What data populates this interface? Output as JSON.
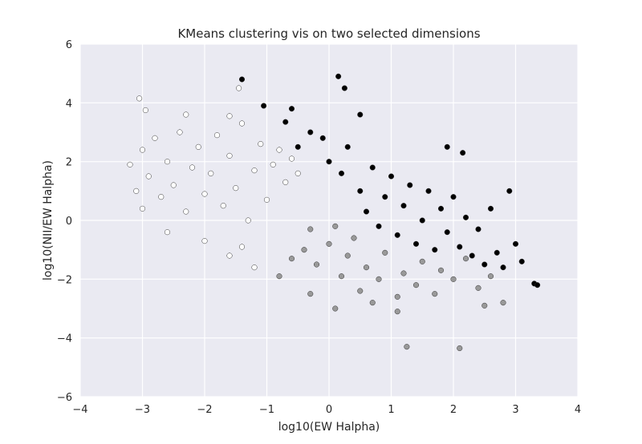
{
  "chart_data": {
    "type": "scatter",
    "title": "KMeans clustering vis on two selected dimensions",
    "xlabel": "log10(EW Halpha)",
    "ylabel": "log10(NII/EW Halpha)",
    "xlim": [
      -4,
      4
    ],
    "ylim": [
      -6,
      6
    ],
    "xticks": [
      -4,
      -3,
      -2,
      -1,
      0,
      1,
      2,
      3,
      4
    ],
    "xtick_labels": [
      "−4",
      "−3",
      "−2",
      "−1",
      "0",
      "1",
      "2",
      "3",
      "4"
    ],
    "yticks": [
      -6,
      -4,
      -2,
      0,
      2,
      4,
      6
    ],
    "ytick_labels": [
      "−6",
      "−4",
      "−2",
      "0",
      "2",
      "4",
      "6"
    ],
    "grid": true,
    "background": "#EAEAF2",
    "grid_color": "#FFFFFF",
    "series": [
      {
        "color": "#FFFFFF",
        "points": [
          [
            -3.2,
            1.9
          ],
          [
            -3.1,
            1.0
          ],
          [
            -3.0,
            2.4
          ],
          [
            -3.0,
            0.4
          ],
          [
            -2.9,
            1.5
          ],
          [
            -2.8,
            2.8
          ],
          [
            -2.7,
            0.8
          ],
          [
            -2.6,
            2.0
          ],
          [
            -2.5,
            1.2
          ],
          [
            -2.4,
            3.0
          ],
          [
            -2.3,
            0.3
          ],
          [
            -2.2,
            1.8
          ],
          [
            -2.1,
            2.5
          ],
          [
            -2.0,
            0.9
          ],
          [
            -1.9,
            1.6
          ],
          [
            -1.8,
            2.9
          ],
          [
            -1.7,
            0.5
          ],
          [
            -1.6,
            2.2
          ],
          [
            -1.5,
            1.1
          ],
          [
            -1.4,
            3.3
          ],
          [
            -1.3,
            0.0
          ],
          [
            -1.2,
            1.7
          ],
          [
            -1.1,
            2.6
          ],
          [
            -1.0,
            0.7
          ],
          [
            -0.9,
            1.9
          ],
          [
            -0.8,
            2.4
          ],
          [
            -0.7,
            1.3
          ],
          [
            -0.6,
            2.1
          ],
          [
            -0.5,
            1.6
          ],
          [
            -2.6,
            -0.4
          ],
          [
            -2.0,
            -0.7
          ],
          [
            -1.6,
            -1.2
          ],
          [
            -1.2,
            -1.6
          ],
          [
            -1.4,
            -0.9
          ],
          [
            -3.05,
            4.15
          ],
          [
            -2.95,
            3.75
          ],
          [
            -2.3,
            3.6
          ],
          [
            -1.45,
            4.5
          ],
          [
            -1.6,
            3.55
          ]
        ]
      },
      {
        "color": "#999999",
        "points": [
          [
            -0.6,
            -1.3
          ],
          [
            -0.4,
            -1.0
          ],
          [
            -0.2,
            -1.5
          ],
          [
            0.0,
            -0.8
          ],
          [
            0.2,
            -1.9
          ],
          [
            0.3,
            -1.2
          ],
          [
            0.5,
            -2.4
          ],
          [
            0.6,
            -1.6
          ],
          [
            0.8,
            -2.0
          ],
          [
            0.9,
            -1.1
          ],
          [
            1.1,
            -2.6
          ],
          [
            1.2,
            -1.8
          ],
          [
            1.4,
            -2.2
          ],
          [
            1.5,
            -1.4
          ],
          [
            1.7,
            -2.5
          ],
          [
            1.8,
            -1.7
          ],
          [
            2.0,
            -2.0
          ],
          [
            2.2,
            -1.3
          ],
          [
            2.4,
            -2.3
          ],
          [
            2.6,
            -1.9
          ],
          [
            -0.3,
            -0.3
          ],
          [
            0.1,
            -0.2
          ],
          [
            0.4,
            -0.6
          ],
          [
            -0.8,
            -1.9
          ],
          [
            -0.3,
            -2.5
          ],
          [
            0.1,
            -3.0
          ],
          [
            0.7,
            -2.8
          ],
          [
            1.1,
            -3.1
          ],
          [
            1.25,
            -4.3
          ],
          [
            2.1,
            -4.35
          ],
          [
            2.5,
            -2.9
          ],
          [
            2.8,
            -2.8
          ]
        ]
      },
      {
        "color": "#000000",
        "points": [
          [
            -0.5,
            2.5
          ],
          [
            -0.3,
            3.0
          ],
          [
            -0.1,
            2.8
          ],
          [
            0.0,
            2.0
          ],
          [
            0.2,
            1.6
          ],
          [
            0.3,
            2.5
          ],
          [
            0.5,
            1.0
          ],
          [
            0.6,
            0.3
          ],
          [
            0.7,
            1.8
          ],
          [
            0.8,
            -0.2
          ],
          [
            0.9,
            0.8
          ],
          [
            1.0,
            1.5
          ],
          [
            1.1,
            -0.5
          ],
          [
            1.2,
            0.5
          ],
          [
            1.3,
            1.2
          ],
          [
            1.4,
            -0.8
          ],
          [
            1.5,
            0.0
          ],
          [
            1.6,
            1.0
          ],
          [
            1.7,
            -1.0
          ],
          [
            1.8,
            0.4
          ],
          [
            1.9,
            -0.4
          ],
          [
            2.0,
            0.8
          ],
          [
            2.1,
            -0.9
          ],
          [
            2.2,
            0.1
          ],
          [
            2.3,
            -1.2
          ],
          [
            2.4,
            -0.3
          ],
          [
            2.5,
            -1.5
          ],
          [
            2.6,
            0.4
          ],
          [
            2.7,
            -1.1
          ],
          [
            2.8,
            -1.6
          ],
          [
            2.9,
            1.0
          ],
          [
            3.0,
            -0.8
          ],
          [
            3.1,
            -1.4
          ],
          [
            3.3,
            -2.15
          ],
          [
            3.35,
            -2.2
          ],
          [
            2.15,
            2.3
          ],
          [
            1.9,
            2.5
          ],
          [
            0.15,
            4.9
          ],
          [
            0.25,
            4.5
          ],
          [
            -1.4,
            4.8
          ],
          [
            -1.05,
            3.9
          ],
          [
            -0.6,
            3.8
          ],
          [
            -0.7,
            3.35
          ],
          [
            0.5,
            3.6
          ]
        ]
      }
    ]
  }
}
